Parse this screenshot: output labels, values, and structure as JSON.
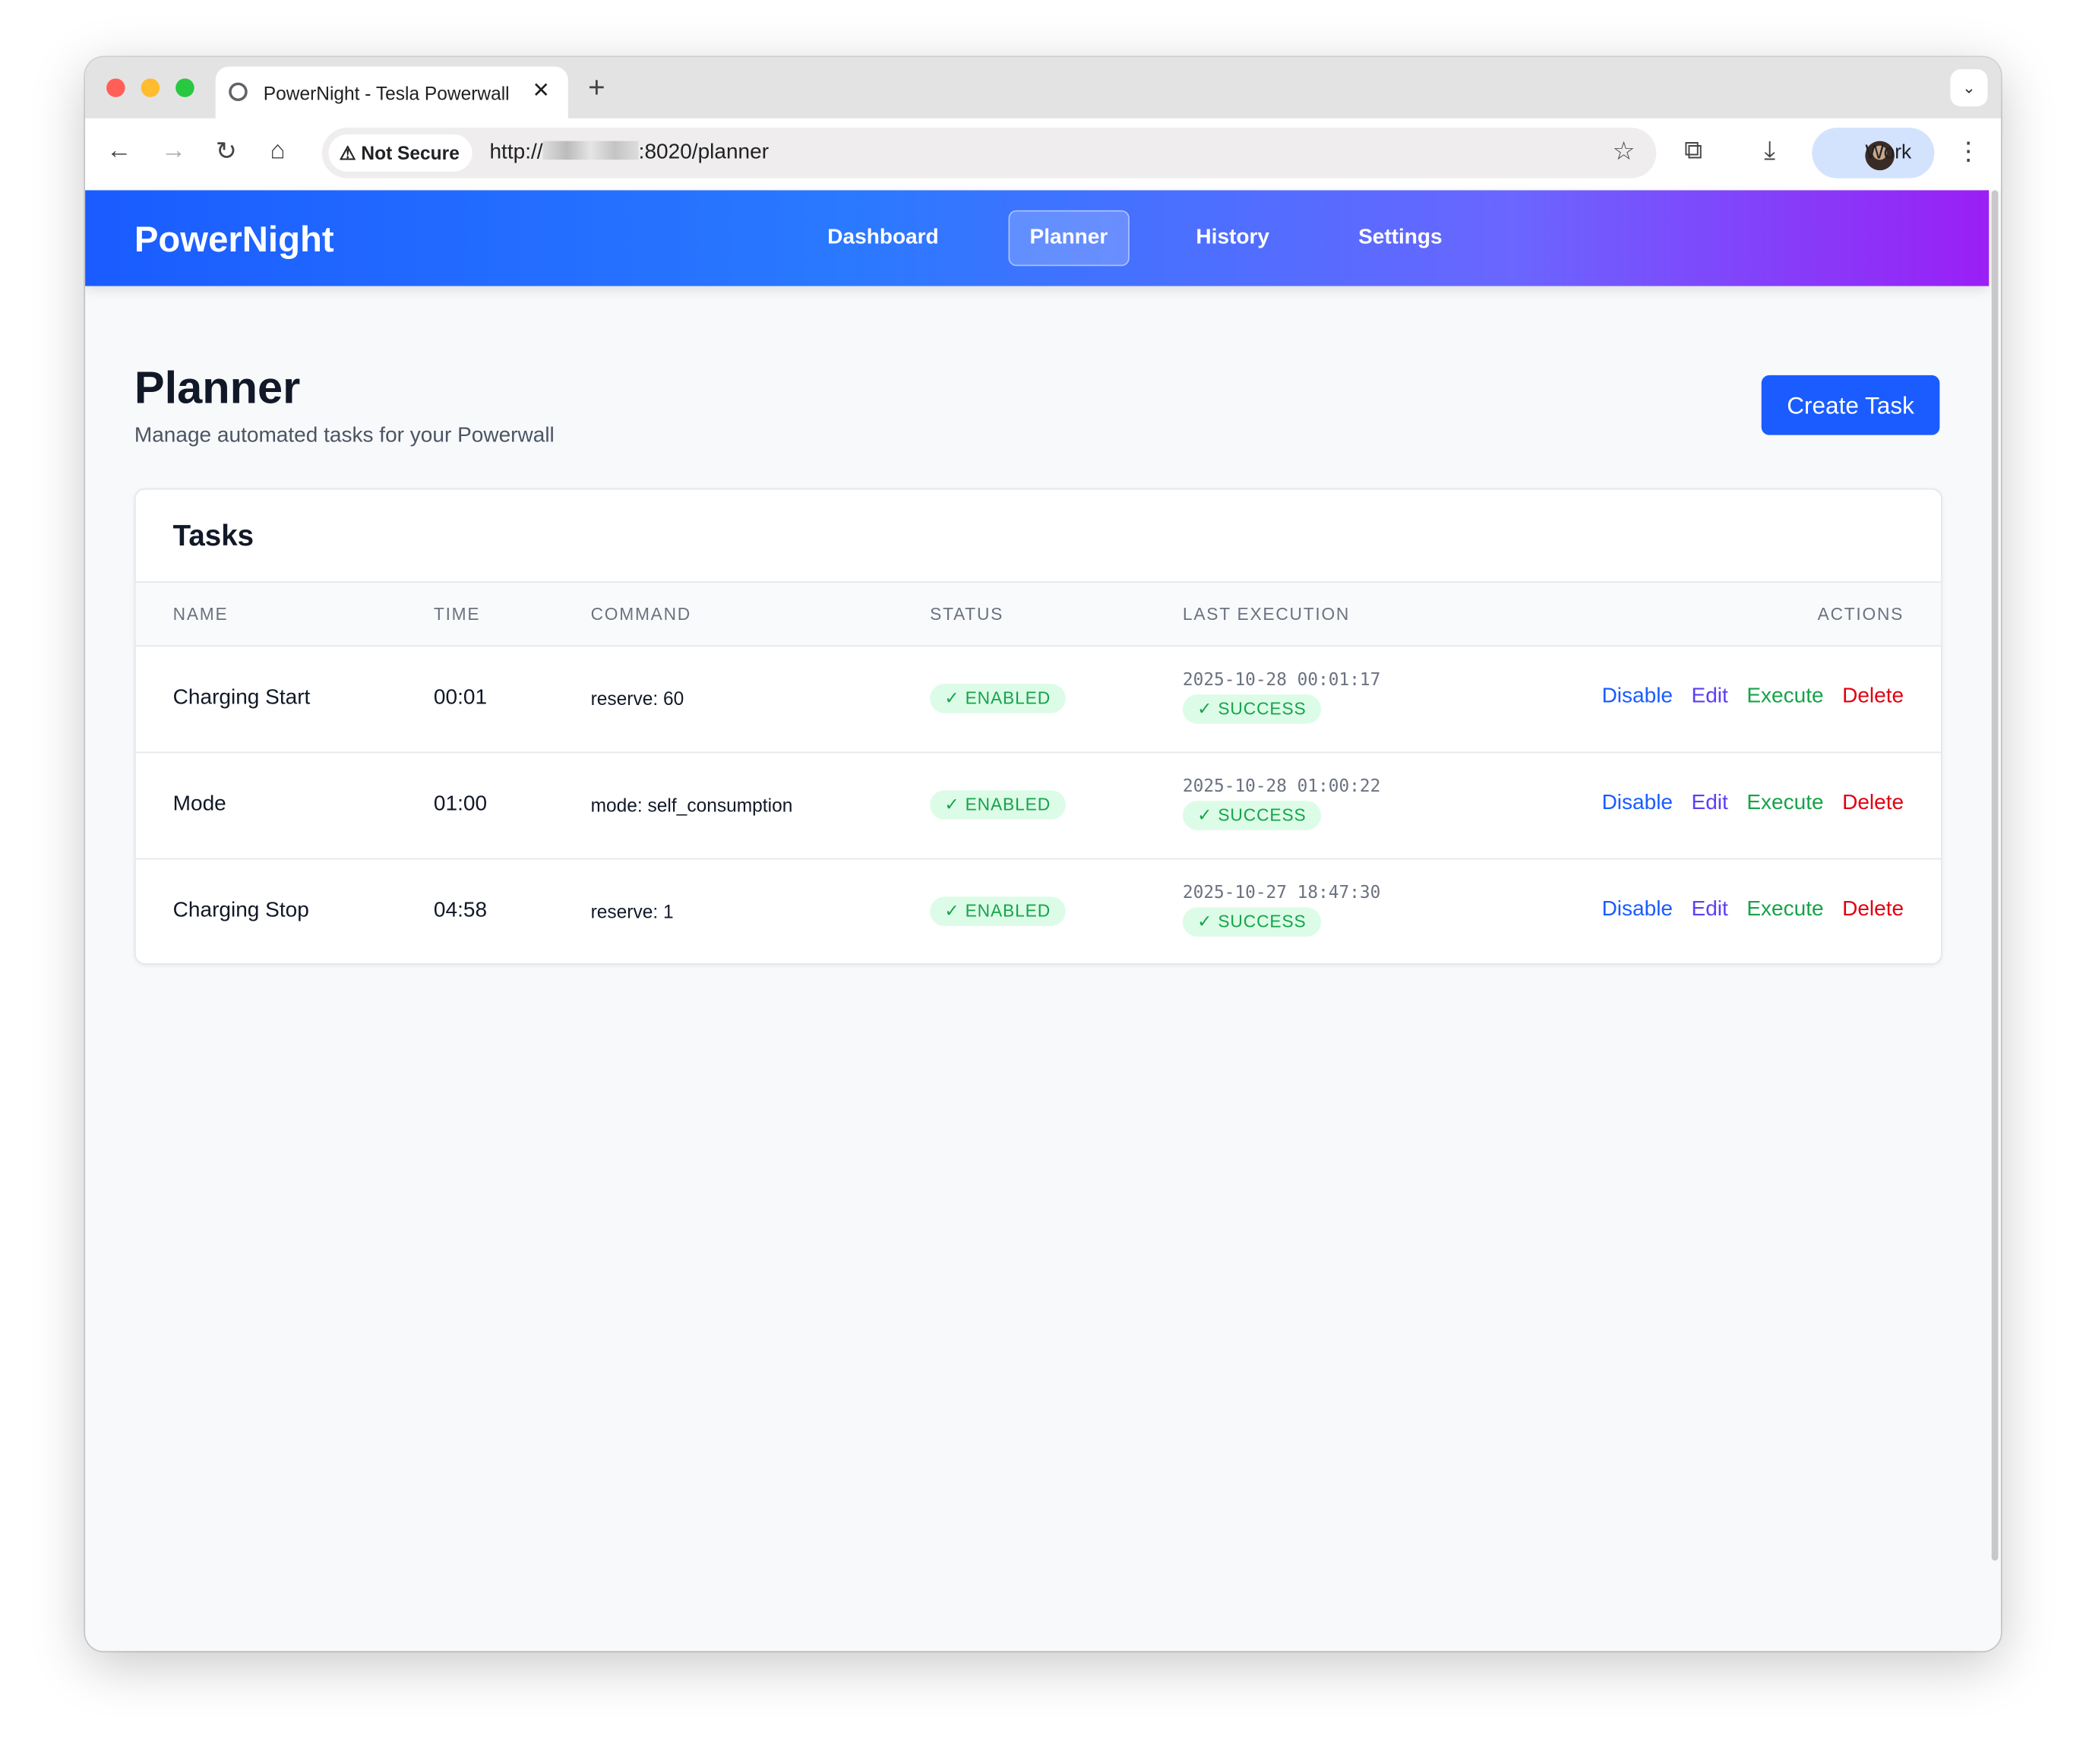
{
  "browser": {
    "tab_title": "PowerNight - Tesla Powerwall",
    "security_label": "Not Secure",
    "url_prefix": "http://",
    "url_suffix": ":8020/planner",
    "profile_name": "Work"
  },
  "nav": {
    "brand": "PowerNight",
    "links": [
      "Dashboard",
      "Planner",
      "History",
      "Settings"
    ],
    "active": "Planner",
    "gradient": [
      "#1a5cff",
      "#9a1ff5"
    ]
  },
  "page": {
    "title": "Planner",
    "subtitle": "Manage automated tasks for your Powerwall",
    "create_button": "Create Task"
  },
  "tasks": {
    "title": "Tasks",
    "columns": [
      "NAME",
      "TIME",
      "COMMAND",
      "STATUS",
      "LAST EXECUTION",
      "ACTIONS"
    ],
    "rows": [
      {
        "name": "Charging Start",
        "time": "00:01",
        "command": "reserve: 60",
        "status": "ENABLED",
        "last_execution": "2025-10-28 00:01:17",
        "result": "SUCCESS"
      },
      {
        "name": "Mode",
        "time": "01:00",
        "command": "mode: self_consumption",
        "status": "ENABLED",
        "last_execution": "2025-10-28 01:00:22",
        "result": "SUCCESS"
      },
      {
        "name": "Charging Stop",
        "time": "04:58",
        "command": "reserve: 1",
        "status": "ENABLED",
        "last_execution": "2025-10-27 18:47:30",
        "result": "SUCCESS"
      }
    ],
    "actions": {
      "disable": "Disable",
      "edit": "Edit",
      "execute": "Execute",
      "delete": "Delete"
    },
    "action_colors": {
      "disable": "#1a5cff",
      "edit": "#5b3ff5",
      "execute": "#16a34a",
      "delete": "#e00012"
    }
  },
  "icons": {
    "check": "✓",
    "close": "✕",
    "plus": "+"
  }
}
